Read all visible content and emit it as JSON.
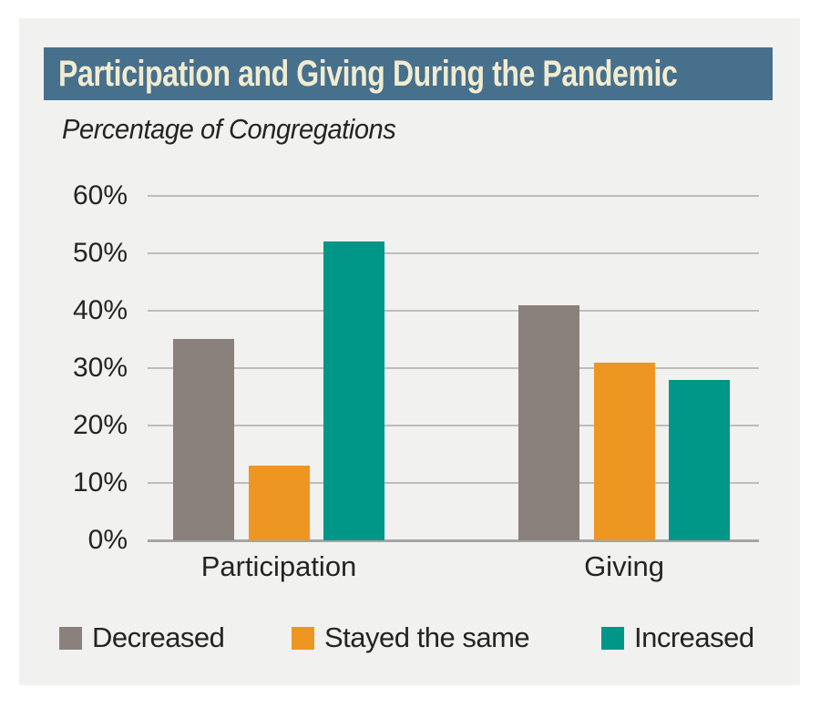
{
  "title_banner": {
    "text": "Participation and Giving During the Pandemic",
    "bg_color": "#46708c",
    "text_color": "#f1ebd1"
  },
  "subtitle": "Percentage of Congregations",
  "chart_data": {
    "type": "bar",
    "title": "Participation and Giving During the Pandemic",
    "subtitle": "Percentage of Congregations",
    "categories": [
      "Participation",
      "Giving"
    ],
    "series": [
      {
        "name": "Decreased",
        "color": "#8a817c",
        "values": [
          35,
          41
        ]
      },
      {
        "name": "Stayed the same",
        "color": "#ee9622",
        "values": [
          13,
          31
        ]
      },
      {
        "name": "Increased",
        "color": "#009688",
        "values": [
          52,
          28
        ]
      }
    ],
    "xlabel": "",
    "ylabel": "",
    "ylim": [
      0,
      60
    ],
    "ytick_step": 10,
    "yticks": [
      "0%",
      "10%",
      "20%",
      "30%",
      "40%",
      "50%",
      "60%"
    ],
    "grid": true,
    "legend_position": "bottom"
  },
  "colors": {
    "page_bg": "#ffffff",
    "panel_bg": "#f1f1ef",
    "gridline": "#bdbdbd",
    "axis_line": "#a5a5a5",
    "text": "#242424"
  }
}
